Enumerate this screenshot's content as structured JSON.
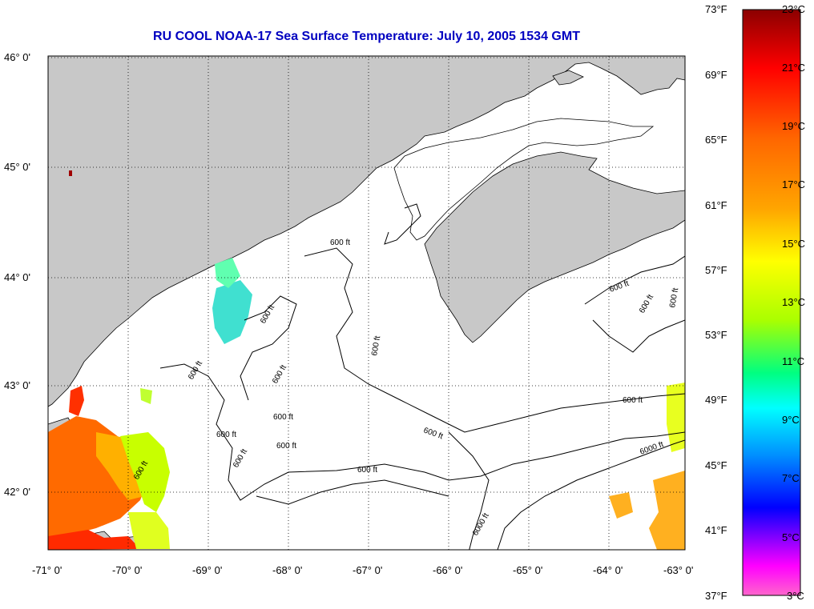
{
  "title": "RU COOL  NOAA-17  Sea Surface Temperature:  July 10, 2005 1534 GMT",
  "map": {
    "lon_range": [
      -71,
      -63
    ],
    "lat_range": [
      41.5,
      46.1
    ],
    "lon_ticks": [
      "-71° 0'",
      "-70° 0'",
      "-69° 0'",
      "-68° 0'",
      "-67° 0'",
      "-66° 0'",
      "-65° 0'",
      "-64° 0'",
      "-63° 0'"
    ],
    "lat_ticks": [
      "46° 0'",
      "45° 0'",
      "44° 0'",
      "43° 0'",
      "42° 0'"
    ],
    "land_color": "#c8c8c8",
    "water_color": "#ffffff",
    "grid": "dotted",
    "contour_labels": [
      "600 ft",
      "600 ft",
      "600 ft",
      "600 ft",
      "600 ft",
      "600 ft",
      "600 ft",
      "600 ft",
      "600 ft",
      "600 ft",
      "600 ft",
      "600 ft",
      "600 ft",
      "600 ft",
      "600 ft",
      "600 ft",
      "6000 ft",
      "6000 ft"
    ]
  },
  "colorbar": {
    "fahrenheit": [
      "73°F",
      "69°F",
      "65°F",
      "61°F",
      "57°F",
      "53°F",
      "49°F",
      "45°F",
      "41°F",
      "37°F"
    ],
    "celsius": [
      "23°C",
      "21°C",
      "19°C",
      "17°C",
      "15°C",
      "13°C",
      "11°C",
      "9°C",
      "7°C",
      "5°C",
      "3°C"
    ],
    "range_c": [
      3,
      23
    ],
    "range_f": [
      37,
      73
    ],
    "colors": [
      "#8b0000",
      "#ff0000",
      "#ff6600",
      "#ffa500",
      "#ffff00",
      "#aaff00",
      "#00ff80",
      "#00ffff",
      "#0090ff",
      "#0000ff",
      "#8000ff",
      "#ff00ff",
      "#ff66cc"
    ]
  }
}
